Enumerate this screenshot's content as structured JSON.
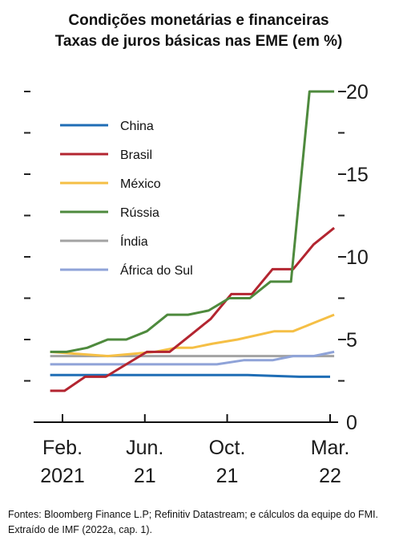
{
  "title_lines": [
    "Condições monetárias e financeiras",
    "Taxas de juros básicas nas EME (em %)"
  ],
  "source_note": "Fontes: Bloomberg Finance L.P; Refinitiv Datastream; e cálculos da equipe do FMI. Extraído de IMF (2022a, cap. 1).",
  "chart_data": {
    "type": "line",
    "title": "Condições monetárias e financeiras",
    "subtitle": "Taxas de juros básicas nas EME (em %)",
    "xlabel": "",
    "ylabel": "",
    "x_ticks": [
      {
        "line1": "Feb.",
        "line2": "2021",
        "month": 0
      },
      {
        "line1": "Jun.",
        "line2": "21",
        "month": 4
      },
      {
        "line1": "Oct.",
        "line2": "21",
        "month": 8
      },
      {
        "line1": "Mar.",
        "line2": "22",
        "month": 13
      }
    ],
    "x_range_months": [
      -1,
      13.7
    ],
    "y_ticks": [
      "0",
      "5",
      "10",
      "15",
      "20"
    ],
    "ylim": [
      0,
      20
    ],
    "y_axis_side": "right",
    "grid": false,
    "legend_position": "top-left",
    "series": [
      {
        "name": "China",
        "color": "#1f6db5",
        "points": [
          [
            -0.6,
            2.85
          ],
          [
            9,
            2.85
          ],
          [
            11.5,
            2.75
          ],
          [
            13,
            2.75
          ]
        ]
      },
      {
        "name": "Brasil",
        "color": "#b32530",
        "points": [
          [
            -0.6,
            1.9
          ],
          [
            0.1,
            1.9
          ],
          [
            1.1,
            2.75
          ],
          [
            2.1,
            2.75
          ],
          [
            3.1,
            3.5
          ],
          [
            4.1,
            4.25
          ],
          [
            5.2,
            4.25
          ],
          [
            6.2,
            5.25
          ],
          [
            7.2,
            6.25
          ],
          [
            8.2,
            7.75
          ],
          [
            9.2,
            7.75
          ],
          [
            10.2,
            9.25
          ],
          [
            11.2,
            9.25
          ],
          [
            12.2,
            10.75
          ],
          [
            13.2,
            11.75
          ]
        ]
      },
      {
        "name": "México",
        "color": "#f5bf45",
        "points": [
          [
            -0.6,
            4.25
          ],
          [
            2.2,
            4.0
          ],
          [
            4.5,
            4.25
          ],
          [
            5.5,
            4.5
          ],
          [
            6.3,
            4.5
          ],
          [
            7.3,
            4.75
          ],
          [
            8.5,
            5.0
          ],
          [
            10.3,
            5.5
          ],
          [
            11.2,
            5.5
          ],
          [
            12.2,
            6.0
          ],
          [
            13.2,
            6.5
          ]
        ]
      },
      {
        "name": "Rússia",
        "color": "#4e8a3d",
        "points": [
          [
            -0.6,
            4.25
          ],
          [
            0.2,
            4.25
          ],
          [
            1.2,
            4.5
          ],
          [
            2.2,
            5.0
          ],
          [
            3.1,
            5.0
          ],
          [
            4.1,
            5.5
          ],
          [
            5.1,
            6.5
          ],
          [
            6.1,
            6.5
          ],
          [
            7.1,
            6.75
          ],
          [
            8.1,
            7.5
          ],
          [
            9.1,
            7.5
          ],
          [
            10.1,
            8.5
          ],
          [
            11.1,
            8.5
          ],
          [
            12.0,
            20.0
          ],
          [
            13.2,
            20.0
          ]
        ]
      },
      {
        "name": "Índia",
        "color": "#a3a3a3",
        "points": [
          [
            -0.6,
            4.0
          ],
          [
            13.2,
            4.0
          ]
        ]
      },
      {
        "name": "África do Sul",
        "color": "#8fa3d8",
        "points": [
          [
            -0.6,
            3.5
          ],
          [
            7.5,
            3.5
          ],
          [
            8.8,
            3.75
          ],
          [
            10.2,
            3.75
          ],
          [
            11.2,
            4.0
          ],
          [
            12.2,
            4.0
          ],
          [
            13.2,
            4.25
          ]
        ]
      }
    ]
  }
}
